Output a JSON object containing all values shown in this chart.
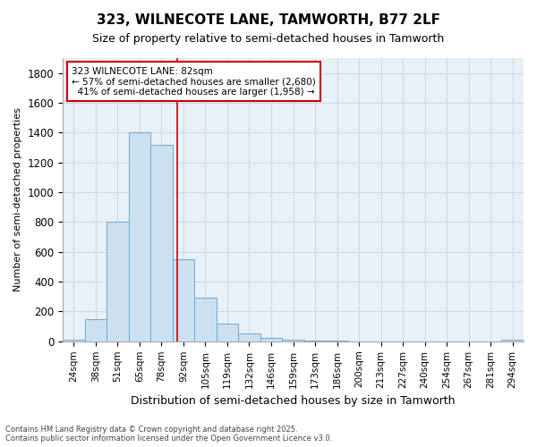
{
  "title1": "323, WILNECOTE LANE, TAMWORTH, B77 2LF",
  "title2": "Size of property relative to semi-detached houses in Tamworth",
  "xlabel": "Distribution of semi-detached houses by size in Tamworth",
  "ylabel": "Number of semi-detached properties",
  "categories": [
    "24sqm",
    "38sqm",
    "51sqm",
    "65sqm",
    "78sqm",
    "92sqm",
    "105sqm",
    "119sqm",
    "132sqm",
    "146sqm",
    "159sqm",
    "173sqm",
    "186sqm",
    "200sqm",
    "213sqm",
    "227sqm",
    "240sqm",
    "254sqm",
    "267sqm",
    "281sqm",
    "294sqm"
  ],
  "values": [
    10,
    150,
    800,
    1400,
    1320,
    550,
    290,
    120,
    55,
    25,
    10,
    5,
    2,
    0,
    0,
    0,
    0,
    0,
    0,
    0,
    10
  ],
  "bar_color": "#cce0f0",
  "bar_edge_color": "#6baad0",
  "grid_color": "#d0d8e8",
  "bg_color": "#e8f0f8",
  "red_line_color": "#cc0000",
  "annotation_text_line1": "323 WILNECOTE LANE: 82sqm",
  "annotation_text_line2": "← 57% of semi-detached houses are smaller (2,680)",
  "annotation_text_line3": "  41% of semi-detached houses are larger (1,958) →",
  "annotation_box_color": "#ffffff",
  "annotation_box_edge": "#cc0000",
  "footnote": "Contains HM Land Registry data © Crown copyright and database right 2025.\nContains public sector information licensed under the Open Government Licence v3.0.",
  "ylim": [
    0,
    1900
  ],
  "yticks": [
    0,
    200,
    400,
    600,
    800,
    1000,
    1200,
    1400,
    1600,
    1800
  ]
}
